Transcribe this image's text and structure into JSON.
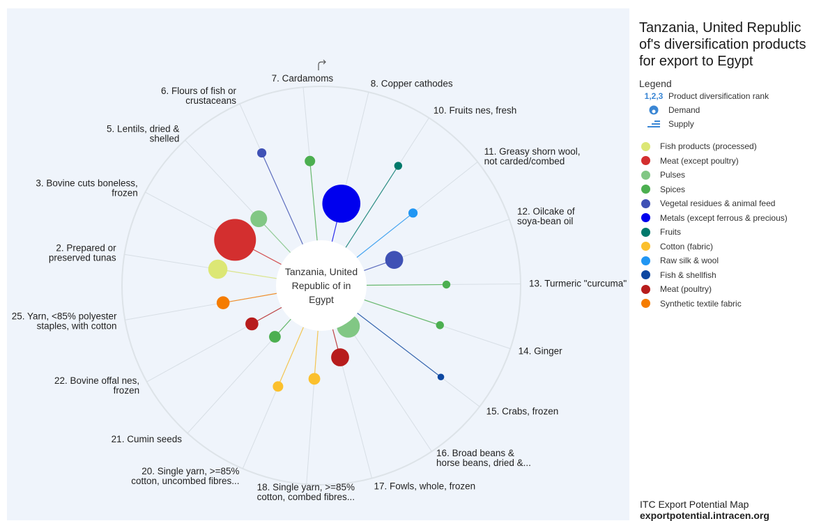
{
  "side_title": "Tanzania, United Republic of's diversification products for export to Egypt",
  "legend": {
    "heading": "Legend",
    "kinds": [
      {
        "icon": "rank-number-icon",
        "glyph": "1,2,3",
        "label": "Product diversification rank"
      },
      {
        "icon": "demand-icon",
        "label": "Demand"
      },
      {
        "icon": "supply-icon",
        "label": "Supply"
      }
    ],
    "categories": [
      {
        "name": "Fish products (processed)",
        "color": "#dce775"
      },
      {
        "name": "Meat (except poultry)",
        "color": "#d32f2f"
      },
      {
        "name": "Pulses",
        "color": "#81c784"
      },
      {
        "name": "Spices",
        "color": "#4caf50"
      },
      {
        "name": "Vegetal residues & animal feed",
        "color": "#3f51b5"
      },
      {
        "name": "Metals (except ferrous & precious)",
        "color": "#0000ee"
      },
      {
        "name": "Fruits",
        "color": "#00796b"
      },
      {
        "name": "Cotton (fabric)",
        "color": "#fbc02d"
      },
      {
        "name": "Raw silk & wool",
        "color": "#2196f3"
      },
      {
        "name": "Fish & shellfish",
        "color": "#0d47a1"
      },
      {
        "name": "Meat (poultry)",
        "color": "#b71c1c"
      },
      {
        "name": "Synthetic textile fabric",
        "color": "#f57c00"
      }
    ]
  },
  "center_label": "Tanzania, United Republic of in Egypt",
  "reset_icon": "redo-arrow-icon",
  "footer": {
    "line1": "ITC Export Potential Map",
    "line2": "exportpotential.intracen.org"
  },
  "chart_data": {
    "type": "radial-bubble",
    "center": "Tanzania, United Republic of in Egypt",
    "products": [
      {
        "rank": 2,
        "label": [
          "2. Prepared or",
          "preserved tunas"
        ],
        "category": "Fish products (processed)",
        "color": "#dce775",
        "demand": 12,
        "supply": 0.55
      },
      {
        "rank": 3,
        "label": [
          "3. Bovine cuts boneless,",
          "frozen"
        ],
        "category": "Meat (except poultry)",
        "color": "#d32f2f",
        "demand": 30,
        "supply": 0.48
      },
      {
        "rank": 5,
        "label": [
          "5. Lentils, dried &",
          "shelled"
        ],
        "category": "Pulses",
        "color": "#81c784",
        "demand": 10,
        "supply": 0.42
      },
      {
        "rank": 6,
        "label": [
          "6. Flours of fish or",
          "crustaceans"
        ],
        "category": "Vegetal residues & animal feed",
        "color": "#3f51b5",
        "demand": 4,
        "supply": 0.95
      },
      {
        "rank": 7,
        "label": [
          "7. Cardamoms"
        ],
        "category": "Spices",
        "color": "#4caf50",
        "demand": 5,
        "supply": 0.75
      },
      {
        "rank": 8,
        "label": [
          "8. Copper cathodes"
        ],
        "category": "Metals (except ferrous & precious)",
        "color": "#0000ee",
        "demand": 27,
        "supply": 0.35
      },
      {
        "rank": 10,
        "label": [
          "10. Fruits nes, fresh"
        ],
        "category": "Fruits",
        "color": "#00796b",
        "demand": 3,
        "supply": 0.92
      },
      {
        "rank": 11,
        "label": [
          "11. Greasy shorn wool,",
          "not carded/combed"
        ],
        "category": "Raw silk & wool",
        "color": "#2196f3",
        "demand": 4,
        "supply": 0.67
      },
      {
        "rank": 12,
        "label": [
          "12. Oilcake of",
          "soya-bean oil"
        ],
        "category": "Vegetal residues & animal feed",
        "color": "#3f51b5",
        "demand": 11,
        "supply": 0.28
      },
      {
        "rank": 13,
        "label": [
          "13. Turmeric \"curcuma\""
        ],
        "category": "Spices",
        "color": "#4caf50",
        "demand": 3,
        "supply": 0.75
      },
      {
        "rank": 14,
        "label": [
          "14. Ginger"
        ],
        "category": "Spices",
        "color": "#4caf50",
        "demand": 3,
        "supply": 0.75
      },
      {
        "rank": 15,
        "label": [
          "15. Crabs, frozen"
        ],
        "category": "Fish & shellfish",
        "color": "#0d47a1",
        "demand": 2,
        "supply": 1.0
      },
      {
        "rank": 16,
        "label": [
          "16. Broad beans &",
          "horse beans, dried &..."
        ],
        "category": "Pulses",
        "color": "#81c784",
        "demand": 15,
        "supply": 0.0
      },
      {
        "rank": 17,
        "label": [
          "17. Fowls, whole, frozen"
        ],
        "category": "Meat (poultry)",
        "color": "#b71c1c",
        "demand": 11,
        "supply": 0.25
      },
      {
        "rank": 18,
        "label": [
          "18. Single yarn, >=85%",
          "cotton, combed fibres..."
        ],
        "category": "Cotton (fabric)",
        "color": "#fbc02d",
        "demand": 6,
        "supply": 0.44
      },
      {
        "rank": 20,
        "label": [
          "20. Single yarn, >=85%",
          "cotton, uncombed fibres..."
        ],
        "category": "Cotton (fabric)",
        "color": "#fbc02d",
        "demand": 5,
        "supply": 0.6
      },
      {
        "rank": 21,
        "label": [
          "21. Cumin seeds"
        ],
        "category": "Spices",
        "color": "#4caf50",
        "demand": 6,
        "supply": 0.2
      },
      {
        "rank": 22,
        "label": [
          "22. Bovine offal nes,",
          "frozen"
        ],
        "category": "Meat (poultry)",
        "color": "#b71c1c",
        "demand": 7,
        "supply": 0.3
      },
      {
        "rank": 25,
        "label": [
          "25. Yarn, <85% polyester",
          "staples, with cotton"
        ],
        "category": "Synthetic textile fabric",
        "color": "#f57c00",
        "demand": 7,
        "supply": 0.5
      }
    ]
  }
}
